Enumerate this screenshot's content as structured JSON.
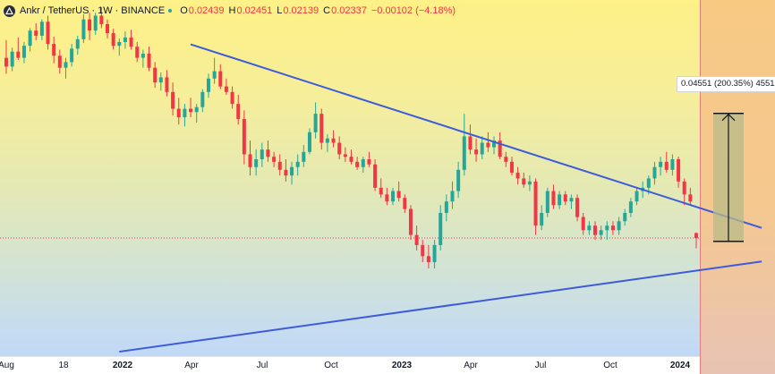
{
  "header": {
    "symbol": "Ankr / TetherUS",
    "interval": "1W",
    "exchange": "BINANCE",
    "open_label": "O",
    "open": "0.02439",
    "high_label": "H",
    "high": "0.02451",
    "low_label": "L",
    "low": "0.02139",
    "close_label": "C",
    "close": "0.02337",
    "change": "−0.00102 (−4.18%)"
  },
  "measure_label": "0.04551 (200.35%) 4551",
  "colors": {
    "up": "#26a69a",
    "down": "#f23645",
    "trendline": "#3d5bdb",
    "measure_fill": "#b8bb88",
    "price_line": "#f23645"
  },
  "chart_data": {
    "type": "candlestick",
    "title": "",
    "time_axis_ticks": [
      {
        "label": "Aug",
        "bold": false
      },
      {
        "label": "18",
        "bold": false
      },
      {
        "label": "2022",
        "bold": true
      },
      {
        "label": "Apr",
        "bold": false
      },
      {
        "label": "Jul",
        "bold": false
      },
      {
        "label": "Oct",
        "bold": false
      },
      {
        "label": "2023",
        "bold": true
      },
      {
        "label": "Apr",
        "bold": false
      },
      {
        "label": "Jul",
        "bold": false
      },
      {
        "label": "Oct",
        "bold": false
      },
      {
        "label": "2024",
        "bold": true
      }
    ],
    "y_range": [
      0.0,
      0.16
    ],
    "y_scale": "log",
    "current_price": 0.02337,
    "trendlines": [
      {
        "name": "descending-resistance",
        "from_date": "2022-03-07",
        "from_price": 0.1235,
        "to_date": "2024-01-08",
        "to_price": 0.0255
      },
      {
        "name": "ascending-support",
        "from_date": "2021-12-13",
        "from_price": 0.0088,
        "to_date": "2024-01-08",
        "to_price": 0.0191
      }
    ],
    "measure": {
      "from_price": 0.02272,
      "to_price": 0.06823,
      "change": 0.04551,
      "percent": 200.35,
      "ticks": 4551
    },
    "candles_weekly_ohlc": [
      [
        0.11,
        0.128,
        0.096,
        0.102
      ],
      [
        0.102,
        0.12,
        0.098,
        0.116
      ],
      [
        0.116,
        0.131,
        0.108,
        0.11
      ],
      [
        0.11,
        0.126,
        0.105,
        0.122
      ],
      [
        0.122,
        0.142,
        0.116,
        0.139
      ],
      [
        0.139,
        0.148,
        0.128,
        0.133
      ],
      [
        0.133,
        0.153,
        0.128,
        0.15
      ],
      [
        0.15,
        0.158,
        0.118,
        0.124
      ],
      [
        0.124,
        0.132,
        0.105,
        0.112
      ],
      [
        0.112,
        0.118,
        0.096,
        0.101
      ],
      [
        0.101,
        0.11,
        0.092,
        0.106
      ],
      [
        0.106,
        0.124,
        0.102,
        0.119
      ],
      [
        0.119,
        0.133,
        0.113,
        0.129
      ],
      [
        0.129,
        0.16,
        0.125,
        0.153
      ],
      [
        0.153,
        0.162,
        0.128,
        0.139
      ],
      [
        0.139,
        0.162,
        0.134,
        0.158
      ],
      [
        0.158,
        0.17,
        0.142,
        0.147
      ],
      [
        0.147,
        0.153,
        0.13,
        0.136
      ],
      [
        0.136,
        0.141,
        0.118,
        0.122
      ],
      [
        0.122,
        0.13,
        0.112,
        0.126
      ],
      [
        0.126,
        0.138,
        0.119,
        0.131
      ],
      [
        0.131,
        0.14,
        0.118,
        0.121
      ],
      [
        0.121,
        0.126,
        0.106,
        0.11
      ],
      [
        0.11,
        0.118,
        0.101,
        0.114
      ],
      [
        0.114,
        0.121,
        0.098,
        0.101
      ],
      [
        0.101,
        0.106,
        0.085,
        0.089
      ],
      [
        0.089,
        0.097,
        0.083,
        0.093
      ],
      [
        0.093,
        0.099,
        0.079,
        0.082
      ],
      [
        0.082,
        0.089,
        0.067,
        0.071
      ],
      [
        0.071,
        0.078,
        0.062,
        0.066
      ],
      [
        0.066,
        0.074,
        0.061,
        0.071
      ],
      [
        0.071,
        0.078,
        0.066,
        0.069
      ],
      [
        0.069,
        0.074,
        0.063,
        0.072
      ],
      [
        0.072,
        0.084,
        0.069,
        0.082
      ],
      [
        0.082,
        0.096,
        0.078,
        0.092
      ],
      [
        0.092,
        0.11,
        0.088,
        0.098
      ],
      [
        0.098,
        0.104,
        0.084,
        0.086
      ],
      [
        0.086,
        0.092,
        0.08,
        0.082
      ],
      [
        0.082,
        0.086,
        0.071,
        0.074
      ],
      [
        0.074,
        0.08,
        0.062,
        0.065
      ],
      [
        0.065,
        0.07,
        0.044,
        0.048
      ],
      [
        0.048,
        0.054,
        0.04,
        0.043
      ],
      [
        0.043,
        0.05,
        0.04,
        0.046
      ],
      [
        0.046,
        0.053,
        0.043,
        0.05
      ],
      [
        0.05,
        0.054,
        0.045,
        0.047
      ],
      [
        0.047,
        0.049,
        0.043,
        0.045
      ],
      [
        0.045,
        0.048,
        0.04,
        0.042
      ],
      [
        0.042,
        0.046,
        0.038,
        0.04
      ],
      [
        0.04,
        0.045,
        0.037,
        0.043
      ],
      [
        0.043,
        0.048,
        0.04,
        0.045
      ],
      [
        0.045,
        0.052,
        0.043,
        0.049
      ],
      [
        0.049,
        0.06,
        0.048,
        0.058
      ],
      [
        0.058,
        0.075,
        0.055,
        0.068
      ],
      [
        0.068,
        0.071,
        0.05,
        0.053
      ],
      [
        0.053,
        0.057,
        0.049,
        0.055
      ],
      [
        0.055,
        0.059,
        0.051,
        0.053
      ],
      [
        0.053,
        0.056,
        0.046,
        0.048
      ],
      [
        0.048,
        0.051,
        0.045,
        0.047
      ],
      [
        0.047,
        0.05,
        0.044,
        0.045
      ],
      [
        0.045,
        0.047,
        0.042,
        0.043
      ],
      [
        0.043,
        0.047,
        0.041,
        0.046
      ],
      [
        0.046,
        0.049,
        0.043,
        0.044
      ],
      [
        0.044,
        0.046,
        0.035,
        0.036
      ],
      [
        0.036,
        0.039,
        0.033,
        0.034
      ],
      [
        0.034,
        0.036,
        0.031,
        0.032
      ],
      [
        0.032,
        0.036,
        0.031,
        0.035
      ],
      [
        0.035,
        0.038,
        0.032,
        0.033
      ],
      [
        0.033,
        0.034,
        0.029,
        0.03
      ],
      [
        0.03,
        0.031,
        0.023,
        0.024
      ],
      [
        0.024,
        0.026,
        0.021,
        0.022
      ],
      [
        0.022,
        0.023,
        0.019,
        0.02
      ],
      [
        0.02,
        0.022,
        0.018,
        0.019
      ],
      [
        0.019,
        0.023,
        0.018,
        0.022
      ],
      [
        0.022,
        0.031,
        0.021,
        0.029
      ],
      [
        0.029,
        0.034,
        0.027,
        0.032
      ],
      [
        0.032,
        0.038,
        0.03,
        0.035
      ],
      [
        0.035,
        0.045,
        0.033,
        0.042
      ],
      [
        0.042,
        0.068,
        0.04,
        0.056
      ],
      [
        0.056,
        0.062,
        0.048,
        0.05
      ],
      [
        0.05,
        0.055,
        0.045,
        0.048
      ],
      [
        0.048,
        0.056,
        0.046,
        0.053
      ],
      [
        0.053,
        0.058,
        0.049,
        0.051
      ],
      [
        0.051,
        0.056,
        0.048,
        0.054
      ],
      [
        0.054,
        0.058,
        0.046,
        0.047
      ],
      [
        0.047,
        0.049,
        0.043,
        0.045
      ],
      [
        0.045,
        0.047,
        0.04,
        0.041
      ],
      [
        0.041,
        0.043,
        0.037,
        0.039
      ],
      [
        0.039,
        0.041,
        0.036,
        0.037
      ],
      [
        0.037,
        0.04,
        0.035,
        0.038
      ],
      [
        0.038,
        0.039,
        0.024,
        0.026
      ],
      [
        0.026,
        0.031,
        0.025,
        0.029
      ],
      [
        0.029,
        0.036,
        0.028,
        0.035
      ],
      [
        0.035,
        0.037,
        0.03,
        0.031
      ],
      [
        0.031,
        0.035,
        0.03,
        0.034
      ],
      [
        0.034,
        0.035,
        0.031,
        0.032
      ],
      [
        0.032,
        0.034,
        0.03,
        0.033
      ],
      [
        0.033,
        0.034,
        0.027,
        0.028
      ],
      [
        0.028,
        0.029,
        0.024,
        0.025
      ],
      [
        0.025,
        0.027,
        0.024,
        0.026
      ],
      [
        0.026,
        0.027,
        0.023,
        0.024
      ],
      [
        0.024,
        0.026,
        0.023,
        0.025
      ],
      [
        0.025,
        0.027,
        0.023,
        0.026
      ],
      [
        0.026,
        0.027,
        0.024,
        0.025
      ],
      [
        0.025,
        0.028,
        0.024,
        0.027
      ],
      [
        0.027,
        0.03,
        0.026,
        0.029
      ],
      [
        0.029,
        0.033,
        0.028,
        0.032
      ],
      [
        0.032,
        0.036,
        0.031,
        0.035
      ],
      [
        0.035,
        0.038,
        0.033,
        0.036
      ],
      [
        0.036,
        0.04,
        0.034,
        0.039
      ],
      [
        0.039,
        0.045,
        0.037,
        0.043
      ],
      [
        0.043,
        0.047,
        0.04,
        0.045
      ],
      [
        0.045,
        0.049,
        0.041,
        0.042
      ],
      [
        0.042,
        0.048,
        0.04,
        0.046
      ],
      [
        0.046,
        0.047,
        0.036,
        0.038
      ],
      [
        0.038,
        0.039,
        0.031,
        0.034
      ],
      [
        0.034,
        0.036,
        0.031,
        0.032
      ],
      [
        0.02439,
        0.02451,
        0.02139,
        0.02337
      ]
    ]
  }
}
